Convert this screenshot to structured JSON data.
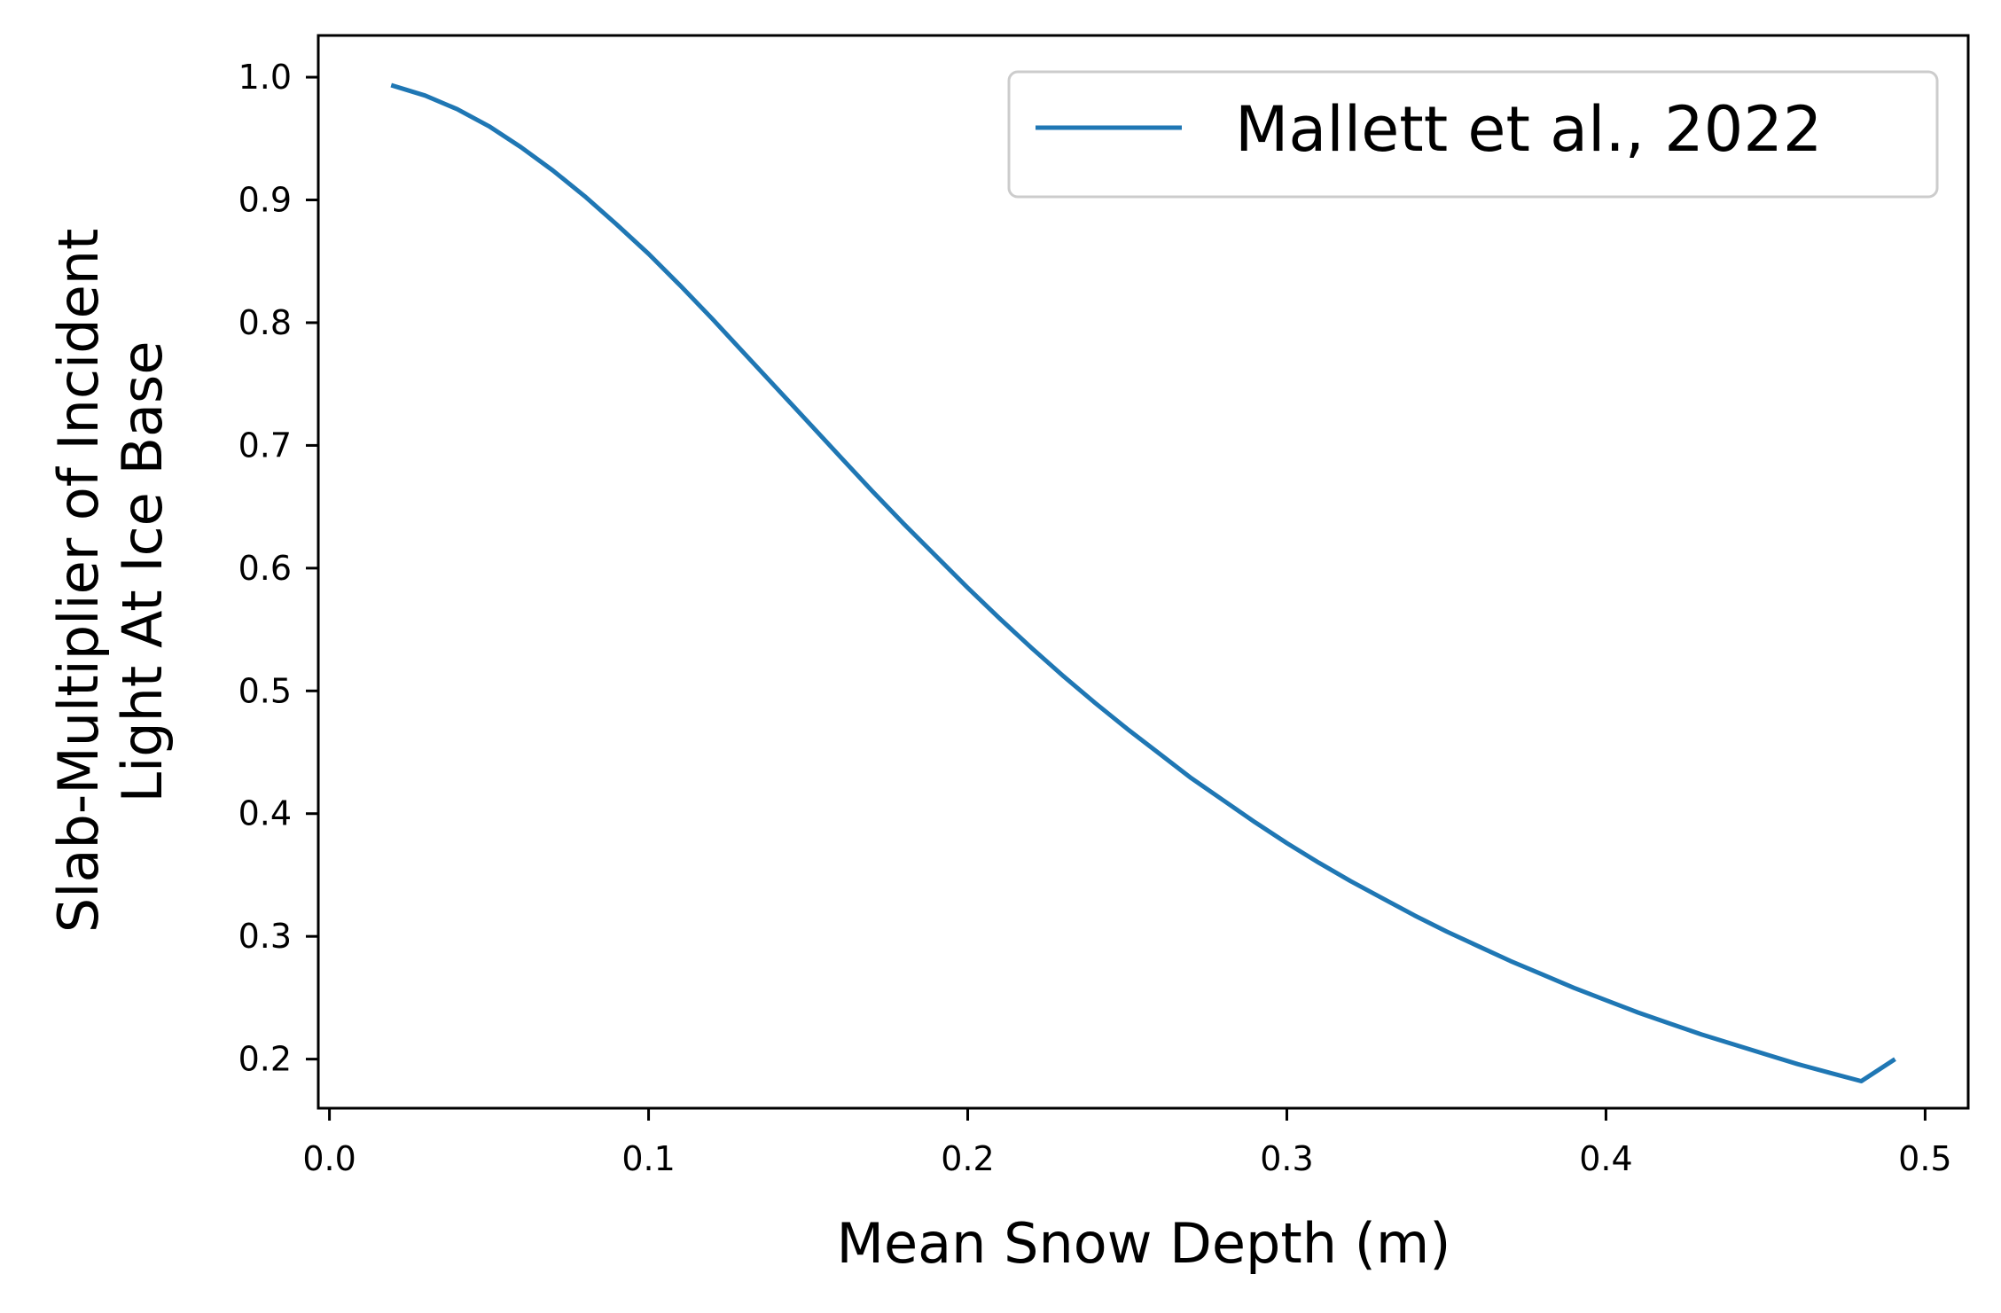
{
  "chart_data": {
    "type": "line",
    "title": "",
    "xlabel": "Mean Snow Depth (m)",
    "ylabel_lines": [
      "Slab-Multiplier of Incident",
      "Light At Ice Base"
    ],
    "xlim": [
      -0.0035,
      0.5135
    ],
    "ylim": [
      0.16,
      1.034
    ],
    "x_ticks": [
      0.0,
      0.1,
      0.2,
      0.3,
      0.4,
      0.5
    ],
    "x_tick_labels": [
      "0.0",
      "0.1",
      "0.2",
      "0.3",
      "0.4",
      "0.5"
    ],
    "y_ticks": [
      0.2,
      0.3,
      0.4,
      0.5,
      0.6,
      0.7,
      0.8,
      0.9,
      1.0
    ],
    "y_tick_labels": [
      "0.2",
      "0.3",
      "0.4",
      "0.5",
      "0.6",
      "0.7",
      "0.8",
      "0.9",
      "1.0"
    ],
    "grid": false,
    "legend_position": "top-right",
    "series": [
      {
        "name": "Mallett et al., 2022",
        "color": "#1f77b4",
        "x": [
          0.02,
          0.03,
          0.04,
          0.05,
          0.06,
          0.07,
          0.08,
          0.09,
          0.1,
          0.11,
          0.12,
          0.13,
          0.14,
          0.15,
          0.16,
          0.17,
          0.18,
          0.19,
          0.2,
          0.21,
          0.22,
          0.23,
          0.24,
          0.25,
          0.26,
          0.27,
          0.28,
          0.29,
          0.3,
          0.31,
          0.32,
          0.33,
          0.34,
          0.35,
          0.36,
          0.37,
          0.38,
          0.39,
          0.4,
          0.41,
          0.42,
          0.43,
          0.44,
          0.45,
          0.46,
          0.47,
          0.48,
          0.49
        ],
        "y": [
          0.993,
          0.985,
          0.974,
          0.96,
          0.943,
          0.924,
          0.903,
          0.88,
          0.856,
          0.83,
          0.803,
          0.775,
          0.747,
          0.719,
          0.691,
          0.663,
          0.636,
          0.61,
          0.584,
          0.559,
          0.535,
          0.512,
          0.49,
          0.469,
          0.449,
          0.429,
          0.411,
          0.393,
          0.376,
          0.36,
          0.345,
          0.331,
          0.317,
          0.304,
          0.292,
          0.28,
          0.269,
          0.258,
          0.248,
          0.238,
          0.229,
          0.22,
          0.212,
          0.204,
          0.196,
          0.189,
          0.182,
          0.199
        ]
      }
    ]
  }
}
